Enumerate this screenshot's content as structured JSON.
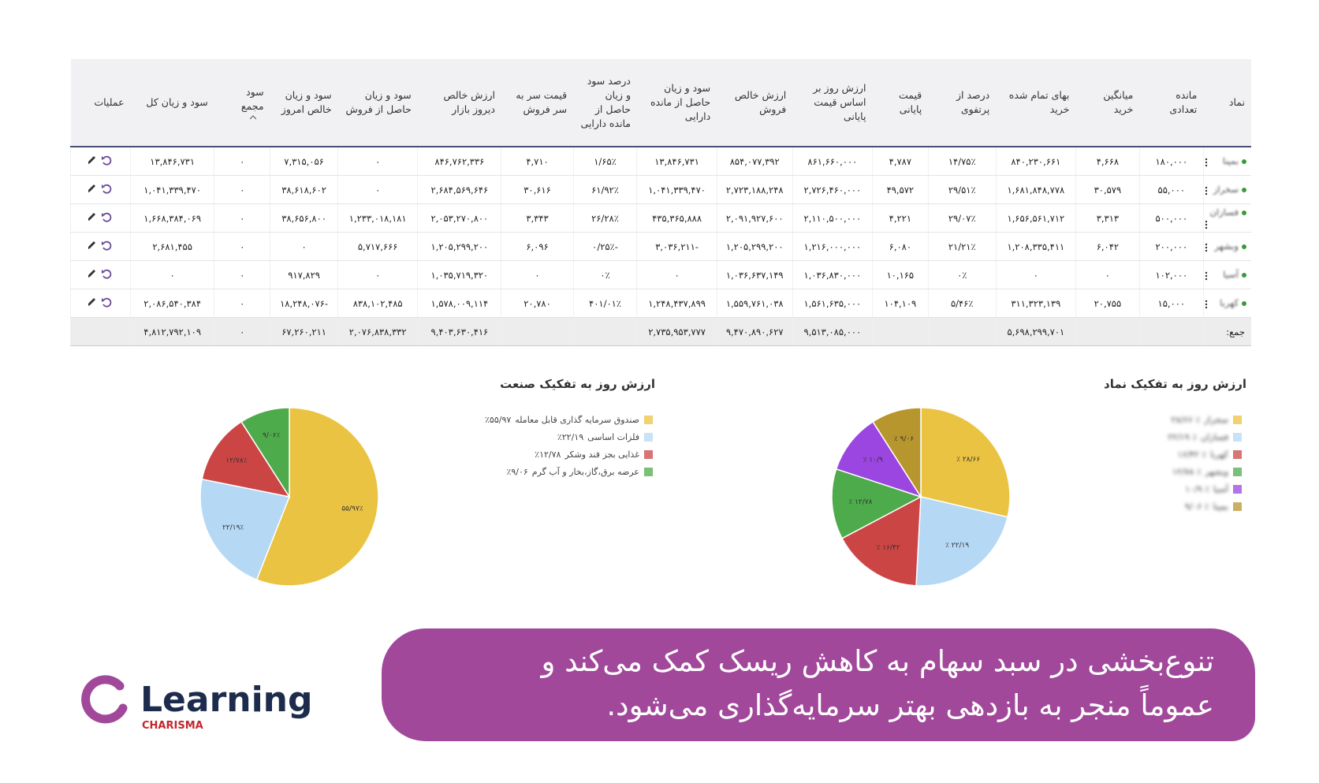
{
  "table": {
    "headers": [
      "نماد",
      "مانده تعدادی",
      "میانگین خرید",
      "بهای تمام شده خرید",
      "درصد از پرتفوی",
      "قیمت پایانی",
      "ارزش روز بر اساس قیمت پایانی",
      "ارزش خالص فروش",
      "سود و زیان حاصل از مانده دارایی",
      "درصد سود و زیان حاصل از مانده دارایی",
      "قیمت سر به سر فروش",
      "ارزش خالص دیروز بازار",
      "سود و زیان حاصل از فروش",
      "سود و زیان خالص امروز",
      "سود مجمع",
      "سود و زیان کل",
      "عملیات"
    ],
    "rows": [
      [
        "بمپنا",
        "۱۸۰,۰۰۰",
        "۴,۶۶۸",
        "۸۴۰,۲۳۰,۶۶۱",
        "۱۴/۷۵٪",
        "۴,۷۸۷",
        "۸۶۱,۶۶۰,۰۰۰",
        "۸۵۴,۰۷۷,۳۹۲",
        "۱۳,۸۴۶,۷۳۱",
        "۱/۶۵٪",
        "۴,۷۱۰",
        "۸۴۶,۷۶۲,۳۳۶",
        "۰",
        "۷,۳۱۵,۰۵۶",
        "۰",
        "۱۳,۸۴۶,۷۳۱"
      ],
      [
        "سخراز",
        "۵۵,۰۰۰",
        "۳۰,۵۷۹",
        "۱,۶۸۱,۸۴۸,۷۷۸",
        "۲۹/۵۱٪",
        "۴۹,۵۷۲",
        "۲,۷۲۶,۴۶۰,۰۰۰",
        "۲,۷۲۳,۱۸۸,۲۴۸",
        "۱,۰۴۱,۳۳۹,۴۷۰",
        "۶۱/۹۲٪",
        "۳۰,۶۱۶",
        "۲,۶۸۴,۵۶۹,۶۴۶",
        "۰",
        "۳۸,۶۱۸,۶۰۲",
        "۰",
        "۱,۰۴۱,۳۳۹,۴۷۰"
      ],
      [
        "فسازان",
        "۵۰۰,۰۰۰",
        "۳,۳۱۳",
        "۱,۶۵۶,۵۶۱,۷۱۲",
        "۲۹/۰۷٪",
        "۴,۲۲۱",
        "۲,۱۱۰,۵۰۰,۰۰۰",
        "۲,۰۹۱,۹۲۷,۶۰۰",
        "۴۳۵,۳۶۵,۸۸۸",
        "۲۶/۲۸٪",
        "۳,۳۴۳",
        "۲,۰۵۳,۲۷۰,۸۰۰",
        "۱,۲۳۳,۰۱۸,۱۸۱",
        "۳۸,۶۵۶,۸۰۰",
        "۰",
        "۱,۶۶۸,۳۸۴,۰۶۹"
      ],
      [
        "وبشهر",
        "۲۰۰,۰۰۰",
        "۶,۰۴۲",
        "۱,۲۰۸,۳۳۵,۴۱۱",
        "۲۱/۲۱٪",
        "۶,۰۸۰",
        "۱,۲۱۶,۰۰۰,۰۰۰",
        "۱,۲۰۵,۲۹۹,۲۰۰",
        "-۳,۰۳۶,۲۱۱",
        "-۰/۲۵٪",
        "۶,۰۹۶",
        "۱,۲۰۵,۲۹۹,۲۰۰",
        "۵,۷۱۷,۶۶۶",
        "۰",
        "۰",
        "۲,۶۸۱,۴۵۵"
      ],
      [
        "آسیا",
        "۱۰۲,۰۰۰",
        "۰",
        "۰",
        "۰٪",
        "۱۰,۱۶۵",
        "۱,۰۳۶,۸۳۰,۰۰۰",
        "۱,۰۳۶,۶۳۷,۱۴۹",
        "۰",
        "۰٪",
        "۰",
        "۱,۰۳۵,۷۱۹,۳۲۰",
        "۰",
        "۹۱۷,۸۲۹",
        "۰",
        "۰"
      ],
      [
        "کهربا",
        "۱۵,۰۰۰",
        "۲۰,۷۵۵",
        "۳۱۱,۳۲۳,۱۳۹",
        "۵/۴۶٪",
        "۱۰۴,۱۰۹",
        "۱,۵۶۱,۶۳۵,۰۰۰",
        "۱,۵۵۹,۷۶۱,۰۳۸",
        "۱,۲۴۸,۴۳۷,۸۹۹",
        "۴۰۱/۰۱٪",
        "۲۰,۷۸۰",
        "۱,۵۷۸,۰۰۹,۱۱۴",
        "۸۳۸,۱۰۲,۴۸۵",
        "-۱۸,۲۴۸,۰۷۶",
        "۰",
        "۲,۰۸۶,۵۴۰,۳۸۴"
      ]
    ],
    "total": [
      "جمع:",
      null,
      null,
      "۵,۶۹۸,۲۹۹,۷۰۱",
      null,
      null,
      "۹,۵۱۳,۰۸۵,۰۰۰",
      "۹,۴۷۰,۸۹۰,۶۲۷",
      "۲,۷۳۵,۹۵۳,۷۷۷",
      null,
      null,
      "۹,۴۰۳,۶۳۰,۴۱۶",
      "۲,۰۷۶,۸۳۸,۳۳۲",
      "۶۷,۲۶۰,۲۱۱",
      "۰",
      "۴,۸۱۲,۷۹۲,۱۰۹"
    ]
  },
  "chart_data": [
    {
      "type": "pie",
      "title": "ارزش روز به تفکیک صنعت",
      "categories": [
        "صندوق سرمایه گذاری قابل معامله",
        "فلزات اساسی",
        "غذایی بجز قند وشکر",
        "عرضه برق،گاز،بخار و آب گرم"
      ],
      "values": [
        55.97,
        22.19,
        12.78,
        9.06
      ],
      "value_labels": [
        "۵۵/۹۷٪",
        "۲۲/۱۹٪",
        "۱۲/۷۸٪",
        "۹/۰۶٪"
      ],
      "colors": [
        "#ebc343",
        "#b5d8f5",
        "#cc4545",
        "#4eab4b"
      ]
    },
    {
      "type": "pie",
      "title": "ارزش روز به تفکیک نماد",
      "categories": [
        "سخراز",
        "فسازان",
        "کهربا",
        "وبشهر",
        "آسیا",
        "بمپنا"
      ],
      "values": [
        28.66,
        22.19,
        16.42,
        12.78,
        10.9,
        9.06
      ],
      "value_labels": [
        "٪ ۲۸/۶۶",
        "٪ ۲۲/۱۹",
        "٪ ۱۶/۴۲",
        "٪ ۱۲/۷۸",
        "٪ ۱۰/۹",
        "٪ ۹/۰۶"
      ],
      "colors": [
        "#ebc343",
        "#b5d8f5",
        "#cc4545",
        "#4eab4b",
        "#9b46e0",
        "#b8962e"
      ]
    }
  ],
  "banner": {
    "lines": [
      "تنوع‌بخشی در سبد سهام به کاهش ریسک کمک می‌کند و",
      "عموماً منجر به بازدهی بهتر سرمایه‌گذاری می‌شود."
    ]
  },
  "logo": {
    "name": "Learning",
    "tagline": "CHARISMA"
  }
}
